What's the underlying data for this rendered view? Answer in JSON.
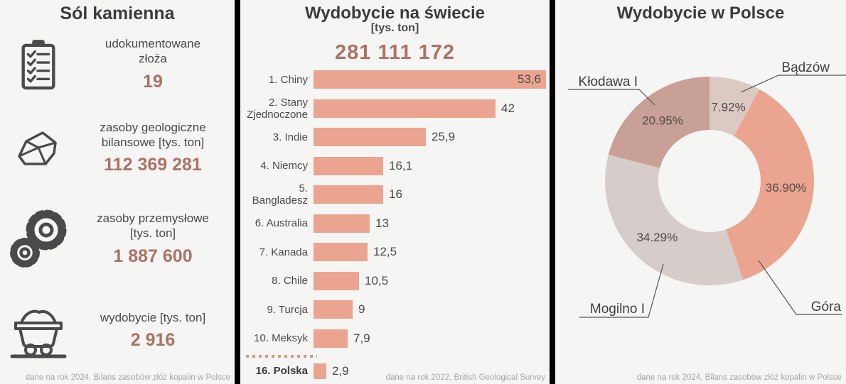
{
  "colors": {
    "accent_brown": "#ad7265",
    "bar_salmon": "#eba48f",
    "background": "#f5f5f4",
    "text_dark": "#3b3b3b",
    "text_mid": "#4a4a4a",
    "footer_grey": "#a9a6a3",
    "divider_black": "#000000"
  },
  "left_panel": {
    "title": "Sól kamienna",
    "stats": [
      {
        "icon": "clipboard-checklist-icon",
        "label": "udokumentowane\nzłoża",
        "value": "19"
      },
      {
        "icon": "rock-icon",
        "label": "zasoby geologiczne\nbilansowe [tys. ton]",
        "value": "112 369 281"
      },
      {
        "icon": "gears-icon",
        "label": "zasoby przemysłowe\n[tys. ton]",
        "value": "1 887 600"
      },
      {
        "icon": "mine-cart-icon",
        "label": "wydobycie [tys. ton]",
        "value": "2 916"
      }
    ],
    "footer": "dane na rok 2024, Bilans zasobów złóż kopalin w Polsce"
  },
  "middle_panel": {
    "title": "Wydobycie na świecie",
    "subtitle": "[tys. ton]",
    "total": "281 111 172",
    "footer": "dane na rok 2022, British Geological Survey"
  },
  "right_panel": {
    "title": "Wydobycie w Polsce",
    "footer": "dane na rok 2024, Bilans zasobów złóż kopalin w Polsce"
  },
  "chart_data": [
    {
      "type": "bar",
      "orientation": "horizontal",
      "title": "Wydobycie na świecie [tys. ton]",
      "categories": [
        "1. Chiny",
        "2. Stany Zjednoczone",
        "3. Indie",
        "4. Niemcy",
        "5. Bangladesz",
        "6. Australia",
        "7. Kanada",
        "8. Chile",
        "9. Turcja",
        "10. Meksyk",
        "16. Polska"
      ],
      "values": [
        53.6,
        42,
        25.9,
        16.1,
        16,
        13,
        12.5,
        10.5,
        9,
        7.9,
        2.9
      ],
      "value_labels": [
        "53,6",
        "42",
        "25,9",
        "16,1",
        "16",
        "13",
        "12,5",
        "10,5",
        "9",
        "7,9",
        "2,9"
      ],
      "xlim": [
        0,
        53.6
      ],
      "grid": false,
      "gap_divider_before_index": 10,
      "bold_categories": [
        "16. Polska"
      ],
      "bar_color": "#eba48f"
    },
    {
      "type": "pie",
      "donut": true,
      "title": "Wydobycie w Polsce",
      "labels": [
        "Bądzów",
        "Góra",
        "Mogilno I",
        "Kłodawa I"
      ],
      "values": [
        7.92,
        36.9,
        34.29,
        20.95
      ],
      "value_labels": [
        "7.92%",
        "36.90%",
        "34.29%",
        "20.95%"
      ],
      "colors": [
        "#dcc9c3",
        "#eba48f",
        "#d6cdca",
        "#c8a096"
      ],
      "start_angle_deg": 0,
      "direction": "clockwise",
      "legend": "callout-labels"
    }
  ]
}
